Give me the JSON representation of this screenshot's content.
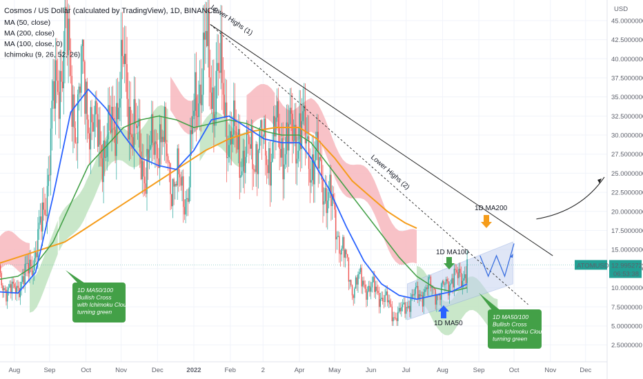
{
  "chart_data": {
    "type": "candlestick",
    "title": "Cosmos / US Dollar (calculated by TradingView), 1D, BINANCE",
    "symbol": "ATOMUSD",
    "price_label": "12.9952729",
    "countdown": "06:53:38",
    "currency_label": "USD",
    "indicators": [
      "MA (50, close)",
      "MA (200, close)",
      "MA (100, close, 0)",
      "Ichimoku (9, 26, 52, 26)"
    ],
    "y_ticks": [
      "45.0000000",
      "42.5000000",
      "40.0000000",
      "37.5000000",
      "35.0000000",
      "32.5000000",
      "30.0000000",
      "27.5000000",
      "25.0000000",
      "22.5000000",
      "20.0000000",
      "17.5000000",
      "15.0000000",
      "12.5000000",
      "10.0000000",
      "7.5000000",
      "5.0000000",
      "2.5000000"
    ],
    "y_tick_values": [
      45,
      42.5,
      40,
      37.5,
      35,
      32.5,
      30,
      27.5,
      25,
      22.5,
      20,
      17.5,
      15,
      12.5,
      10,
      7.5,
      5,
      2.5
    ],
    "ylim": [
      0.3,
      47.7
    ],
    "x_ticks": [
      "Aug",
      "Sep",
      "Oct",
      "Nov",
      "Dec",
      "2022",
      "Feb",
      "2",
      "Apr",
      "May",
      "Jun",
      "Jul",
      "Aug",
      "Sep",
      "Oct",
      "Nov",
      "Dec"
    ],
    "x_tick_days": [
      17,
      47,
      78,
      108,
      139,
      170,
      201,
      229,
      260,
      290,
      321,
      351,
      382,
      413,
      443,
      474,
      504
    ],
    "close_series": [
      [
        0,
        12.5
      ],
      [
        5,
        11
      ],
      [
        10,
        10
      ],
      [
        15,
        9.3
      ],
      [
        20,
        10.5
      ],
      [
        25,
        11
      ],
      [
        30,
        13
      ],
      [
        35,
        14.5
      ],
      [
        40,
        18
      ],
      [
        45,
        24
      ],
      [
        50,
        33
      ],
      [
        55,
        38
      ],
      [
        60,
        43
      ],
      [
        65,
        37
      ],
      [
        70,
        32
      ],
      [
        75,
        38
      ],
      [
        80,
        34
      ],
      [
        85,
        30
      ],
      [
        90,
        30
      ],
      [
        95,
        28
      ],
      [
        100,
        31
      ],
      [
        105,
        35
      ],
      [
        110,
        38
      ],
      [
        115,
        34
      ],
      [
        120,
        30
      ],
      [
        125,
        27
      ],
      [
        130,
        26
      ],
      [
        135,
        28
      ],
      [
        140,
        31
      ],
      [
        145,
        28
      ],
      [
        150,
        25
      ],
      [
        155,
        24
      ],
      [
        160,
        22.5
      ],
      [
        165,
        23
      ],
      [
        170,
        32
      ],
      [
        175,
        38
      ],
      [
        180,
        41
      ],
      [
        185,
        36
      ],
      [
        190,
        38
      ],
      [
        195,
        35
      ],
      [
        200,
        30
      ],
      [
        205,
        29
      ],
      [
        210,
        28
      ],
      [
        215,
        27
      ],
      [
        220,
        28
      ],
      [
        225,
        29
      ],
      [
        230,
        28
      ],
      [
        235,
        28
      ],
      [
        240,
        30
      ],
      [
        245,
        29
      ],
      [
        250,
        29
      ],
      [
        255,
        30
      ],
      [
        260,
        31
      ],
      [
        265,
        29
      ],
      [
        270,
        27
      ],
      [
        275,
        26
      ],
      [
        280,
        24
      ],
      [
        285,
        22
      ],
      [
        290,
        19
      ],
      [
        295,
        16
      ],
      [
        300,
        13
      ],
      [
        305,
        10
      ],
      [
        310,
        11
      ],
      [
        315,
        10.5
      ],
      [
        320,
        10
      ],
      [
        325,
        9.5
      ],
      [
        330,
        9
      ],
      [
        335,
        8
      ],
      [
        340,
        6.5
      ],
      [
        345,
        6.5
      ],
      [
        350,
        7.5
      ],
      [
        355,
        8.5
      ],
      [
        360,
        9
      ],
      [
        365,
        9.5
      ],
      [
        370,
        10
      ],
      [
        375,
        10
      ],
      [
        380,
        9
      ],
      [
        385,
        10.5
      ],
      [
        390,
        11.5
      ],
      [
        395,
        11
      ],
      [
        400,
        12
      ],
      [
        403,
        13
      ]
    ],
    "ma50": [
      [
        0,
        9.5
      ],
      [
        20,
        9.3
      ],
      [
        35,
        12
      ],
      [
        50,
        22
      ],
      [
        65,
        33
      ],
      [
        80,
        36
      ],
      [
        95,
        33.5
      ],
      [
        110,
        30
      ],
      [
        125,
        27
      ],
      [
        140,
        26
      ],
      [
        155,
        25.5
      ],
      [
        170,
        28
      ],
      [
        185,
        32
      ],
      [
        200,
        32.5
      ],
      [
        215,
        31
      ],
      [
        230,
        29.5
      ],
      [
        245,
        29
      ],
      [
        260,
        29
      ],
      [
        270,
        27
      ],
      [
        285,
        23
      ],
      [
        300,
        18
      ],
      [
        315,
        13.5
      ],
      [
        330,
        10.5
      ],
      [
        345,
        9
      ],
      [
        360,
        8.5
      ],
      [
        375,
        9
      ],
      [
        390,
        9.5
      ],
      [
        403,
        10.5
      ]
    ],
    "ma100": [
      [
        0,
        11
      ],
      [
        20,
        11.5
      ],
      [
        35,
        13
      ],
      [
        50,
        16
      ],
      [
        65,
        21
      ],
      [
        80,
        26
      ],
      [
        95,
        28.5
      ],
      [
        110,
        31
      ],
      [
        125,
        32
      ],
      [
        140,
        32.5
      ],
      [
        155,
        32
      ],
      [
        170,
        31
      ],
      [
        185,
        31.5
      ],
      [
        200,
        32
      ],
      [
        215,
        31.5
      ],
      [
        230,
        30.5
      ],
      [
        245,
        30
      ],
      [
        260,
        30
      ],
      [
        270,
        29
      ],
      [
        285,
        26
      ],
      [
        300,
        23
      ],
      [
        315,
        20
      ],
      [
        330,
        17
      ],
      [
        345,
        14
      ],
      [
        360,
        11.5
      ],
      [
        375,
        10
      ],
      [
        390,
        9.5
      ],
      [
        403,
        10
      ]
    ],
    "ma200": [
      [
        0,
        13
      ],
      [
        20,
        14
      ],
      [
        40,
        15
      ],
      [
        60,
        16
      ],
      [
        80,
        18
      ],
      [
        100,
        20
      ],
      [
        120,
        22
      ],
      [
        140,
        24
      ],
      [
        160,
        26
      ],
      [
        180,
        28
      ],
      [
        200,
        29.5
      ],
      [
        220,
        30.5
      ],
      [
        240,
        31
      ],
      [
        260,
        31
      ],
      [
        275,
        29.5
      ],
      [
        290,
        27
      ],
      [
        305,
        24
      ],
      [
        320,
        22
      ],
      [
        335,
        20
      ],
      [
        350,
        18.5
      ],
      [
        360,
        17.8
      ]
    ],
    "annotations": [
      {
        "text": "Lower Highs (1)"
      },
      {
        "text": "Lower Highs (2)"
      },
      {
        "text": "1D MA200"
      },
      {
        "text": "1D MA100"
      },
      {
        "text": "1D MA50"
      }
    ],
    "info_boxes": [
      {
        "lines": [
          "1D MA50/100",
          "Bullish Cross",
          "with Ichimoku Cloud",
          "turning green"
        ]
      },
      {
        "lines": [
          "1D MA50/100",
          "Bullish Cross",
          "with Ichimoku Cloud",
          "turning green"
        ]
      }
    ],
    "colors": {
      "ma50": "#2962ff",
      "ma100": "#43a047",
      "ma200": "#f59c1a",
      "cloud_bear": "#f7b7bd",
      "cloud_bull": "#bfe3c0",
      "candle_up": "#26a69a",
      "candle_down": "#ef5350",
      "label_bg": "#22a094",
      "box_green": "#43a047",
      "arrow_orange": "#f59c1a",
      "arrow_green": "#43a047",
      "arrow_blue": "#2962ff",
      "channel": "#c5d3f0"
    }
  }
}
